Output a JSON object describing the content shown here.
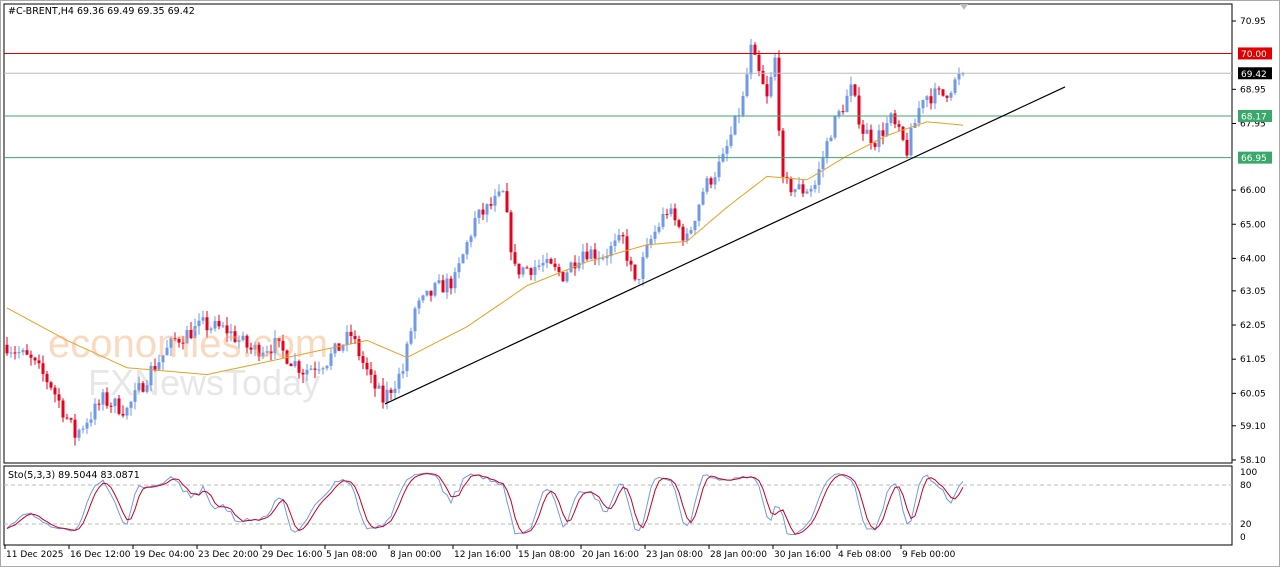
{
  "header": {
    "symbol": "#C-BRENT,H4",
    "ohlc": "69.36 69.49 69.35 69.42"
  },
  "watermarks": [
    "economies.com",
    "FXNewsToday"
  ],
  "colors": {
    "up": "#6f9ae8",
    "down": "#e8001c",
    "ma": "#e8a020",
    "resistance": "#e00000",
    "support": "#3aa86a",
    "bid": "#000000",
    "sto_main": "#6f9ae8",
    "sto_signal": "#c8001c"
  },
  "chart_data": {
    "type": "candlestick",
    "ylim": [
      58.1,
      71.3
    ],
    "y_ticks": [
      "70.95",
      "68.95",
      "67.95",
      "66.00",
      "65.00",
      "64.00",
      "63.05",
      "62.05",
      "61.05",
      "60.05",
      "59.10",
      "58.10"
    ],
    "x_ticks": [
      {
        "bar": 0,
        "label": "11 Dec 2025"
      },
      {
        "bar": 16,
        "label": "16 Dec 12:00"
      },
      {
        "bar": 32,
        "label": "19 Dec 04:00"
      },
      {
        "bar": 48,
        "label": "23 Dec 20:00"
      },
      {
        "bar": 64,
        "label": "29 Dec 16:00"
      },
      {
        "bar": 80,
        "label": "5 Jan 08:00"
      },
      {
        "bar": 96,
        "label": "8 Jan 00:00"
      },
      {
        "bar": 112,
        "label": "12 Jan 16:00"
      },
      {
        "bar": 128,
        "label": "15 Jan 08:00"
      },
      {
        "bar": 144,
        "label": "20 Jan 16:00"
      },
      {
        "bar": 160,
        "label": "23 Jan 08:00"
      },
      {
        "bar": 176,
        "label": "28 Jan 00:00"
      },
      {
        "bar": 192,
        "label": "30 Jan 16:00"
      },
      {
        "bar": 208,
        "label": "4 Feb 08:00"
      },
      {
        "bar": 224,
        "label": "9 Feb 00:00"
      }
    ],
    "close_path": [
      [
        0,
        61.47
      ],
      [
        6,
        61.0
      ],
      [
        11,
        60.3
      ],
      [
        17,
        58.83
      ],
      [
        24,
        59.86
      ],
      [
        30,
        59.56
      ],
      [
        36,
        60.73
      ],
      [
        42,
        61.61
      ],
      [
        49,
        62.05
      ],
      [
        55,
        61.9
      ],
      [
        61,
        61.32
      ],
      [
        67,
        61.46
      ],
      [
        74,
        60.73
      ],
      [
        80,
        61.02
      ],
      [
        86,
        61.76
      ],
      [
        91,
        60.4
      ],
      [
        94,
        59.86
      ],
      [
        99,
        60.73
      ],
      [
        102,
        62.49
      ],
      [
        107,
        63.08
      ],
      [
        112,
        63.37
      ],
      [
        117,
        65.12
      ],
      [
        124,
        65.86
      ],
      [
        127,
        63.66
      ],
      [
        134,
        63.81
      ],
      [
        139,
        63.52
      ],
      [
        144,
        64.25
      ],
      [
        149,
        64.1
      ],
      [
        154,
        64.54
      ],
      [
        157,
        63.22
      ],
      [
        161,
        64.54
      ],
      [
        165,
        65.42
      ],
      [
        170,
        64.54
      ],
      [
        174,
        66.0
      ],
      [
        179,
        66.88
      ],
      [
        184,
        68.64
      ],
      [
        186,
        70.1
      ],
      [
        190,
        68.64
      ],
      [
        192,
        69.81
      ],
      [
        194,
        66.15
      ],
      [
        199,
        66.0
      ],
      [
        202,
        66.15
      ],
      [
        206,
        67.76
      ],
      [
        211,
        68.93
      ],
      [
        214,
        67.76
      ],
      [
        217,
        67.47
      ],
      [
        221,
        68.05
      ],
      [
        225,
        67.17
      ],
      [
        229,
        68.78
      ],
      [
        234,
        68.78
      ],
      [
        239,
        69.42
      ]
    ],
    "ma_path": [
      [
        0,
        62.55
      ],
      [
        15,
        61.6
      ],
      [
        30,
        60.8
      ],
      [
        50,
        60.6
      ],
      [
        70,
        61.1
      ],
      [
        90,
        61.6
      ],
      [
        100,
        61.1
      ],
      [
        115,
        62.0
      ],
      [
        130,
        63.2
      ],
      [
        145,
        63.9
      ],
      [
        160,
        64.4
      ],
      [
        170,
        64.5
      ],
      [
        180,
        65.5
      ],
      [
        190,
        66.4
      ],
      [
        200,
        66.3
      ],
      [
        210,
        67.0
      ],
      [
        220,
        67.6
      ],
      [
        230,
        68.0
      ],
      [
        239,
        67.9
      ]
    ],
    "levels": [
      {
        "value": 70.0,
        "label": "70.00",
        "kind": "resistance"
      },
      {
        "value": 68.17,
        "label": "68.17",
        "kind": "support"
      },
      {
        "value": 66.95,
        "label": "66.95",
        "kind": "support"
      }
    ],
    "last_price": {
      "value": 69.42,
      "label": "69.42"
    },
    "trendline": [
      [
        94.5,
        59.74
      ],
      [
        264.5,
        69.02
      ]
    ],
    "stochastic": {
      "title": "Sto(5,3,3) 89.5044 83.0871",
      "levels": [
        80,
        20
      ],
      "axis_ticks": [
        "100",
        "80",
        "20",
        "0"
      ]
    }
  }
}
